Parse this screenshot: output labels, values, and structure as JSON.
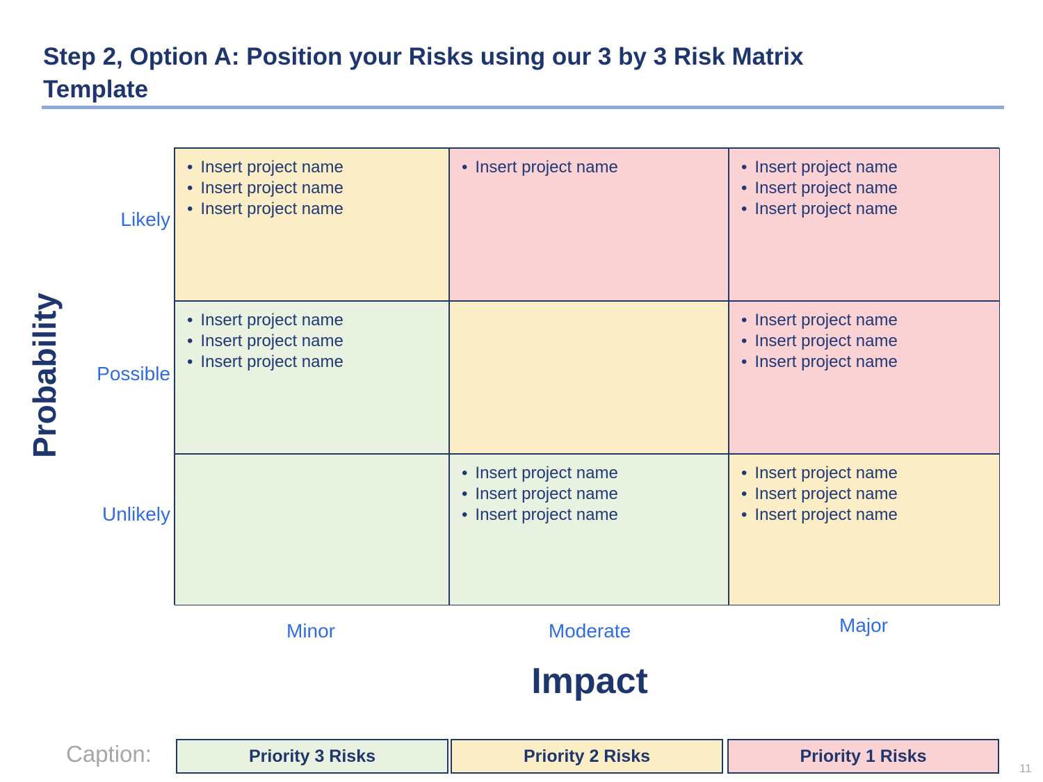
{
  "slide": {
    "title_lines": [
      "Step 2, Option A: Position your Risks using our 3 by 3 Risk Matrix",
      "Template"
    ],
    "page_number": "11"
  },
  "colors": {
    "green": "#E9F2E1",
    "yellow": "#FBEDC5",
    "pink": "#FBD2D4",
    "navy": "#1E356E",
    "border_navy": "#1F3864",
    "label_blue": "#2F6CE2",
    "rule_light_blue": "#8EAADB",
    "caption_gray": "#A6A6A6"
  },
  "axes": {
    "y_title": "Probability",
    "y_labels": [
      "Likely",
      "Possible",
      "Unlikely"
    ],
    "x_title": "Impact",
    "x_labels": [
      "Minor",
      "Moderate",
      "Major"
    ]
  },
  "matrix": {
    "placeholder_text": "Insert project name",
    "cells": [
      {
        "row": "Likely",
        "col": "Minor",
        "color": "yellow",
        "items": [
          "Insert project name",
          "Insert project name",
          "Insert project name"
        ]
      },
      {
        "row": "Likely",
        "col": "Moderate",
        "color": "pink",
        "items": [
          "Insert project name"
        ]
      },
      {
        "row": "Likely",
        "col": "Major",
        "color": "pink",
        "items": [
          "Insert project name",
          "Insert project name",
          "Insert project name"
        ]
      },
      {
        "row": "Possible",
        "col": "Minor",
        "color": "green",
        "items": [
          "Insert project name",
          "Insert project name",
          "Insert project name"
        ]
      },
      {
        "row": "Possible",
        "col": "Moderate",
        "color": "yellow",
        "items": []
      },
      {
        "row": "Possible",
        "col": "Major",
        "color": "pink",
        "items": [
          "Insert project name",
          "Insert project name",
          "Insert project name"
        ]
      },
      {
        "row": "Unlikely",
        "col": "Minor",
        "color": "green",
        "items": []
      },
      {
        "row": "Unlikely",
        "col": "Moderate",
        "color": "green",
        "items": [
          "Insert project name",
          "Insert project name",
          "Insert project name"
        ]
      },
      {
        "row": "Unlikely",
        "col": "Major",
        "color": "yellow",
        "items": [
          "Insert project name",
          "Insert project name",
          "Insert project name"
        ]
      }
    ]
  },
  "legend": {
    "caption_label": "Caption:",
    "entries": [
      {
        "label": "Priority 3 Risks",
        "color": "green"
      },
      {
        "label": "Priority 2 Risks",
        "color": "yellow"
      },
      {
        "label": "Priority 1 Risks",
        "color": "pink"
      }
    ]
  }
}
